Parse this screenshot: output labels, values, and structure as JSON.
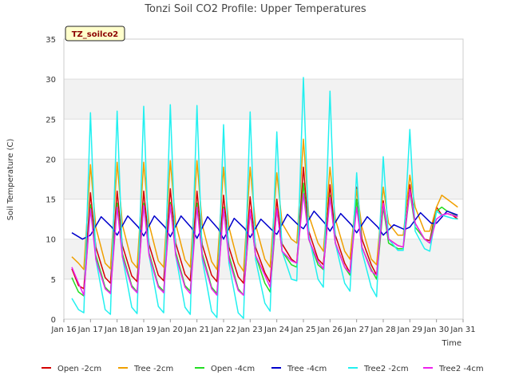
{
  "chart_data": {
    "type": "line",
    "title": "Tonzi Soil CO2 Profile: Upper Temperatures",
    "xlabel": "Time",
    "ylabel": "Soil Temperature (C)",
    "ylim": [
      0,
      35
    ],
    "yticks": [
      "0",
      "5",
      "10",
      "15",
      "20",
      "25",
      "30",
      "35"
    ],
    "xticks": [
      "Jan 16",
      "Jan 17",
      "Jan 18",
      "Jan 19",
      "Jan 20",
      "Jan 21",
      "Jan 22",
      "Jan 23",
      "Jan 24",
      "Jan 25",
      "Jan 26",
      "Jan 27",
      "Jan 28",
      "Jan 29",
      "Jan 30",
      "Jan 31"
    ],
    "xlim_day": [
      16,
      31
    ],
    "site_tag": "TZ_soilco2",
    "grid": true,
    "legend_position": "bottom",
    "series": [
      {
        "name": "Open -2cm",
        "color": "#d40000",
        "x": [
          16.3,
          16.55,
          16.75,
          17.0,
          17.2,
          17.55,
          17.75,
          18.0,
          18.2,
          18.55,
          18.75,
          19.0,
          19.2,
          19.55,
          19.75,
          20.0,
          20.2,
          20.55,
          20.75,
          21.0,
          21.2,
          21.55,
          21.75,
          22.0,
          22.2,
          22.55,
          22.75,
          23.0,
          23.2,
          23.55,
          23.75,
          24.0,
          24.2,
          24.55,
          24.75,
          25.0,
          25.2,
          25.55,
          25.75,
          26.0,
          26.2,
          26.55,
          26.75,
          27.0,
          27.2,
          27.55,
          27.75,
          28.0,
          28.2,
          28.55,
          28.75,
          29.0,
          29.2,
          29.55,
          29.75,
          30.0,
          30.2,
          30.4,
          30.6,
          30.8
        ],
        "y": [
          6.3,
          4.2,
          3.8,
          15.8,
          9.0,
          5.2,
          4.5,
          16.0,
          9.2,
          5.4,
          4.7,
          16.0,
          9.3,
          5.5,
          4.8,
          16.3,
          9.5,
          5.6,
          4.8,
          16.0,
          9.3,
          5.5,
          4.7,
          15.5,
          9.0,
          5.3,
          4.5,
          15.3,
          9.0,
          5.8,
          4.6,
          15.0,
          9.4,
          7.5,
          7.0,
          19.0,
          11.0,
          7.5,
          6.8,
          16.8,
          10.5,
          7.0,
          5.8,
          16.5,
          10.0,
          6.8,
          5.5,
          14.8,
          10.0,
          9.2,
          9.0,
          16.8,
          12.0,
          10.0,
          9.8,
          14.0,
          13.0,
          13.2,
          13.0,
          12.5
        ]
      },
      {
        "name": "Tree -2cm",
        "color": "#f0a000",
        "x": [
          16.3,
          16.55,
          16.75,
          17.0,
          17.2,
          17.55,
          17.75,
          18.0,
          18.2,
          18.55,
          18.75,
          19.0,
          19.2,
          19.55,
          19.75,
          20.0,
          20.2,
          20.55,
          20.75,
          21.0,
          21.2,
          21.55,
          21.75,
          22.0,
          22.2,
          22.55,
          22.75,
          23.0,
          23.2,
          23.55,
          23.75,
          24.0,
          24.2,
          24.55,
          24.75,
          25.0,
          25.2,
          25.55,
          25.75,
          26.0,
          26.2,
          26.55,
          26.75,
          27.0,
          27.2,
          27.55,
          27.75,
          28.0,
          28.2,
          28.55,
          28.75,
          29.0,
          29.2,
          29.55,
          29.75,
          30.0,
          30.2,
          30.4,
          30.6,
          30.8
        ],
        "y": [
          7.8,
          7.0,
          6.2,
          19.3,
          11.5,
          7.0,
          6.3,
          19.6,
          11.8,
          7.2,
          6.4,
          19.6,
          11.9,
          7.3,
          6.5,
          19.8,
          12.0,
          7.4,
          6.5,
          19.8,
          11.8,
          7.2,
          6.2,
          19.0,
          11.5,
          7.0,
          6.0,
          19.0,
          11.8,
          7.5,
          6.5,
          18.3,
          12.0,
          10.0,
          9.5,
          22.5,
          13.0,
          9.5,
          8.5,
          19.0,
          12.5,
          8.5,
          7.5,
          16.2,
          11.5,
          7.5,
          6.8,
          16.5,
          12.0,
          10.5,
          10.5,
          18.0,
          14.0,
          11.0,
          11.0,
          14.0,
          15.5,
          15.0,
          14.5,
          14.0
        ]
      },
      {
        "name": "Open -4cm",
        "color": "#22dd22",
        "x": [
          16.3,
          16.55,
          16.75,
          17.0,
          17.2,
          17.55,
          17.75,
          18.0,
          18.2,
          18.55,
          18.75,
          19.0,
          19.2,
          19.55,
          19.75,
          20.0,
          20.2,
          20.55,
          20.75,
          21.0,
          21.2,
          21.55,
          21.75,
          22.0,
          22.2,
          22.55,
          22.75,
          23.0,
          23.2,
          23.55,
          23.75,
          24.0,
          24.2,
          24.55,
          24.75,
          25.0,
          25.2,
          25.55,
          25.75,
          26.0,
          26.2,
          26.55,
          26.75,
          27.0,
          27.2,
          27.55,
          27.75,
          28.0,
          28.2,
          28.55,
          28.75,
          29.0,
          29.2,
          29.55,
          29.75,
          30.0,
          30.2,
          30.4,
          30.6,
          30.8
        ],
        "y": [
          5.2,
          3.4,
          2.9,
          14.3,
          8.0,
          4.0,
          3.3,
          14.5,
          8.2,
          4.2,
          3.4,
          14.5,
          8.3,
          4.2,
          3.5,
          14.6,
          8.4,
          4.2,
          3.5,
          14.5,
          8.2,
          4.0,
          3.2,
          14.0,
          8.0,
          3.8,
          3.0,
          13.5,
          8.0,
          4.5,
          3.4,
          13.8,
          8.5,
          6.8,
          6.5,
          17.0,
          10.0,
          6.8,
          6.2,
          15.5,
          9.5,
          6.5,
          5.5,
          15.0,
          9.0,
          6.2,
          5.0,
          14.0,
          9.5,
          8.8,
          8.8,
          16.0,
          11.5,
          10.0,
          9.5,
          13.5,
          14.0,
          13.5,
          13.2,
          12.8
        ]
      },
      {
        "name": "Tree -4cm",
        "color": "#0000cc",
        "x": [
          16.3,
          16.7,
          17.0,
          17.4,
          17.8,
          18.0,
          18.4,
          18.8,
          19.0,
          19.4,
          19.8,
          20.0,
          20.4,
          20.8,
          21.0,
          21.4,
          21.8,
          22.0,
          22.4,
          22.8,
          23.0,
          23.4,
          23.8,
          24.0,
          24.4,
          24.8,
          25.0,
          25.4,
          25.8,
          26.0,
          26.4,
          26.8,
          27.0,
          27.4,
          27.8,
          28.0,
          28.4,
          28.8,
          29.0,
          29.4,
          29.8,
          30.0,
          30.4,
          30.8
        ],
        "y": [
          10.8,
          10.0,
          10.5,
          12.8,
          11.5,
          10.5,
          12.9,
          11.5,
          10.4,
          12.9,
          11.5,
          10.3,
          12.9,
          11.4,
          10.1,
          12.8,
          11.3,
          10.0,
          12.6,
          11.3,
          10.2,
          12.5,
          11.2,
          10.6,
          13.1,
          11.8,
          11.3,
          13.5,
          12.0,
          11.0,
          13.2,
          11.8,
          10.8,
          12.8,
          11.5,
          10.5,
          11.8,
          11.2,
          11.5,
          13.3,
          12.0,
          12.0,
          13.5,
          13.0
        ]
      },
      {
        "name": "Tree2 -2cm",
        "color": "#22f0f0",
        "x": [
          16.3,
          16.55,
          16.75,
          17.0,
          17.2,
          17.55,
          17.75,
          18.0,
          18.2,
          18.55,
          18.75,
          19.0,
          19.2,
          19.55,
          19.75,
          20.0,
          20.2,
          20.55,
          20.75,
          21.0,
          21.2,
          21.55,
          21.75,
          22.0,
          22.2,
          22.55,
          22.75,
          23.0,
          23.2,
          23.55,
          23.75,
          24.0,
          24.2,
          24.55,
          24.75,
          25.0,
          25.2,
          25.55,
          25.75,
          26.0,
          26.2,
          26.55,
          26.75,
          27.0,
          27.2,
          27.55,
          27.75,
          28.0,
          28.2,
          28.55,
          28.75,
          29.0,
          29.2,
          29.55,
          29.75,
          30.0,
          30.2,
          30.4,
          30.6,
          30.8
        ],
        "y": [
          2.6,
          1.2,
          0.8,
          25.8,
          7.5,
          1.2,
          0.6,
          26.0,
          7.8,
          1.5,
          0.7,
          26.6,
          8.0,
          1.6,
          0.8,
          26.8,
          8.0,
          1.5,
          0.6,
          26.7,
          7.5,
          1.0,
          0.2,
          24.3,
          7.0,
          0.8,
          0.1,
          25.9,
          7.5,
          2.0,
          1.0,
          23.4,
          8.5,
          5.0,
          4.8,
          30.2,
          10.5,
          5.0,
          4.0,
          28.5,
          9.5,
          4.5,
          3.5,
          18.3,
          8.5,
          4.0,
          2.8,
          20.3,
          10.0,
          8.6,
          8.6,
          23.7,
          11.0,
          8.8,
          8.5,
          13.5,
          13.0,
          12.8,
          12.6,
          12.5
        ]
      },
      {
        "name": "Tree2 -4cm",
        "color": "#ee22ee",
        "x": [
          16.3,
          16.55,
          16.75,
          17.0,
          17.2,
          17.55,
          17.75,
          18.0,
          18.2,
          18.55,
          18.75,
          19.0,
          19.2,
          19.55,
          19.75,
          20.0,
          20.2,
          20.55,
          20.75,
          21.0,
          21.2,
          21.55,
          21.75,
          22.0,
          22.2,
          22.55,
          22.75,
          23.0,
          23.2,
          23.55,
          23.75,
          24.0,
          24.2,
          24.55,
          24.75,
          25.0,
          25.2,
          25.55,
          25.75,
          26.0,
          26.2,
          26.55,
          26.75,
          27.0,
          27.2,
          27.55,
          27.75,
          28.0,
          28.2,
          28.55,
          28.75,
          29.0,
          29.2,
          29.55,
          29.75,
          30.0,
          30.2,
          30.4,
          30.6,
          30.8
        ],
        "y": [
          6.5,
          4.5,
          3.0,
          13.8,
          7.5,
          3.8,
          3.2,
          14.0,
          7.8,
          4.0,
          3.3,
          14.2,
          8.0,
          4.0,
          3.3,
          14.3,
          8.0,
          4.0,
          3.2,
          14.0,
          7.8,
          3.8,
          3.0,
          13.8,
          7.5,
          3.6,
          3.0,
          13.7,
          8.0,
          5.5,
          4.0,
          13.8,
          8.5,
          7.3,
          7.0,
          15.7,
          10.0,
          7.2,
          6.3,
          15.2,
          9.5,
          6.5,
          5.8,
          14.0,
          9.0,
          6.0,
          5.5,
          14.5,
          10.0,
          9.2,
          9.0,
          16.2,
          12.0,
          10.0,
          9.5,
          12.5,
          13.0,
          13.2,
          13.0,
          12.8
        ]
      }
    ]
  }
}
